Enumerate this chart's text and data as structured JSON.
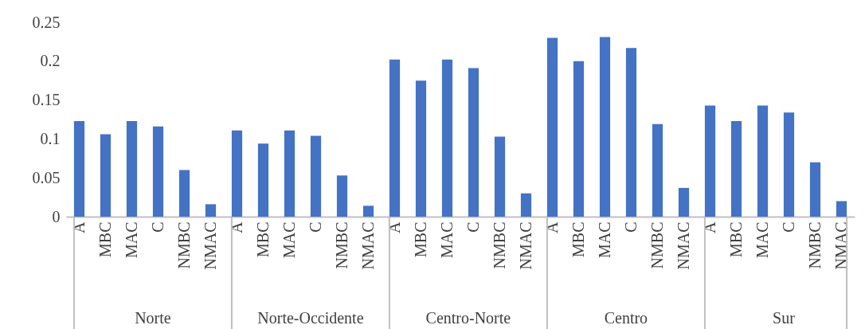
{
  "chart_data": {
    "type": "bar",
    "categories": [
      "A",
      "MBC",
      "MAC",
      "C",
      "NMBC",
      "NMAC",
      "A",
      "MBC",
      "MAC",
      "C",
      "NMBC",
      "NMAC",
      "A",
      "MBC",
      "MAC",
      "C",
      "NMBC",
      "NMAC",
      "A",
      "MBC",
      "MAC",
      "C",
      "NMBC",
      "NMAC",
      "A",
      "MBC",
      "MAC",
      "C",
      "NMBC",
      "NMAC"
    ],
    "values": [
      0.123,
      0.106,
      0.123,
      0.116,
      0.06,
      0.016,
      0.111,
      0.094,
      0.111,
      0.104,
      0.053,
      0.014,
      0.202,
      0.175,
      0.202,
      0.191,
      0.103,
      0.03,
      0.23,
      0.2,
      0.231,
      0.217,
      0.119,
      0.037,
      0.143,
      0.123,
      0.143,
      0.134,
      0.07,
      0.02
    ],
    "color": "#4472c4",
    "ylim": [
      0,
      0.25
    ],
    "yticks": [
      0,
      0.05,
      0.1,
      0.15,
      0.2,
      0.25
    ],
    "grid": false,
    "annotations": [
      "Norte",
      "Norte-Occidente",
      "Centro-Norte",
      "Centro",
      "Sur"
    ]
  }
}
